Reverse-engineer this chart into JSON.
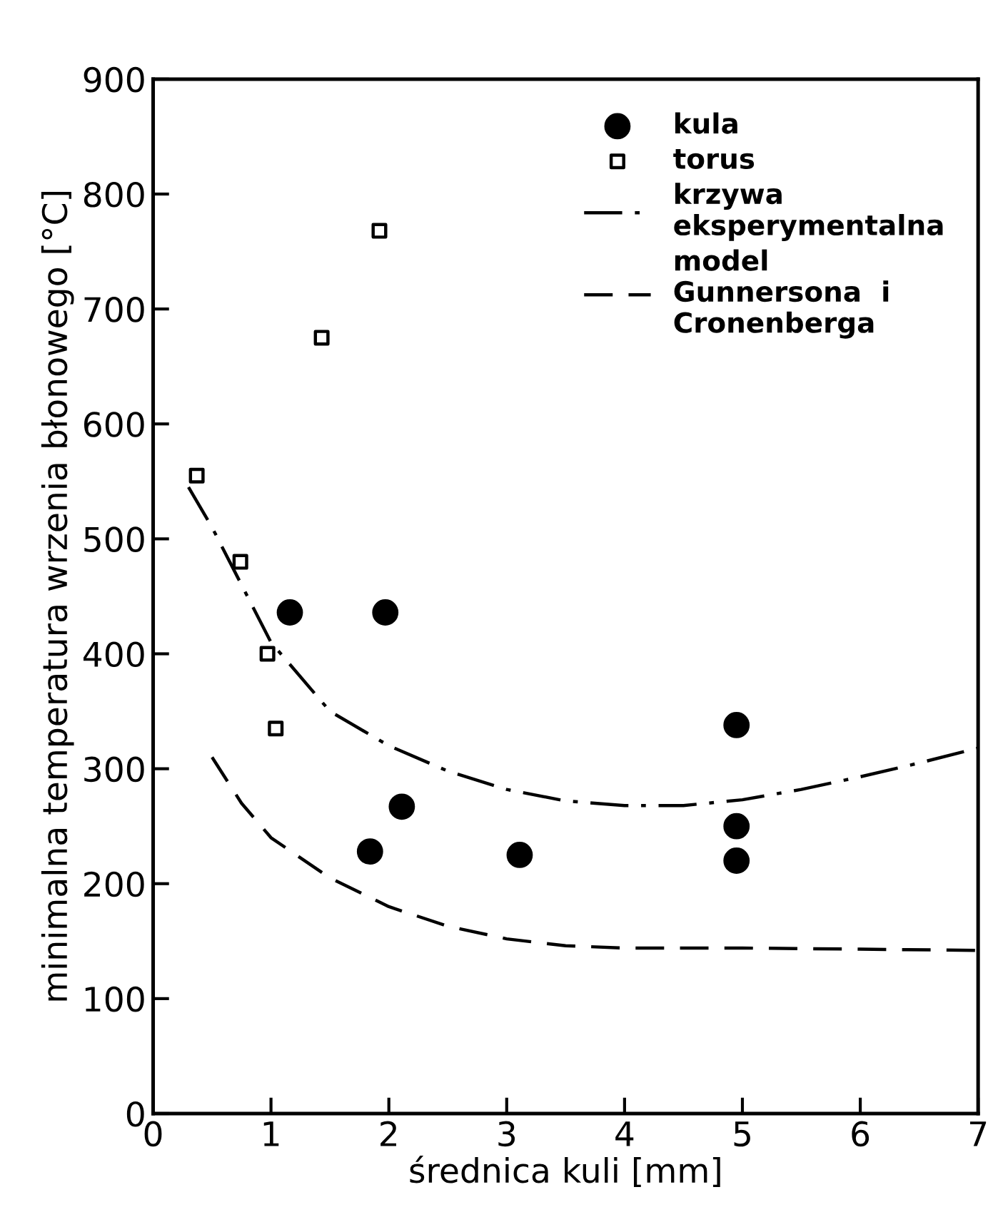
{
  "chart_data": {
    "type": "scatter",
    "xlabel": "średnica kuli [mm]",
    "ylabel": "minimalna temperatura wrzenia błonowego [°C]",
    "xlim": [
      0,
      7
    ],
    "xticks": [
      0,
      1,
      2,
      3,
      4,
      5,
      6,
      7
    ],
    "ylim": [
      0,
      900
    ],
    "yticks": [
      0,
      100,
      200,
      300,
      400,
      500,
      600,
      700,
      800,
      900
    ],
    "grid": false,
    "legend": "top right",
    "series": [
      {
        "name": "kula",
        "marker": "circle",
        "color": "#000000",
        "x": [
          1.16,
          1.97,
          1.84,
          2.11,
          3.11,
          4.95,
          4.95,
          4.95
        ],
        "values": [
          436,
          436,
          228,
          267,
          225,
          338,
          250,
          220
        ]
      },
      {
        "name": "torus",
        "marker": "square",
        "color": "#000000",
        "x": [
          0.37,
          0.74,
          0.97,
          1.04,
          1.43,
          1.92
        ],
        "values": [
          555,
          480,
          400,
          335,
          675,
          768
        ]
      },
      {
        "name": "krzywa\neksperymentalna",
        "type": "line",
        "line_style": "dashdot",
        "color": "#000000",
        "x": [
          0.3,
          0.5,
          0.75,
          1,
          1.5,
          2,
          2.5,
          3,
          3.5,
          4,
          4.5,
          5,
          5.5,
          6,
          6.5,
          7
        ],
        "values": [
          545,
          510,
          460,
          410,
          350,
          320,
          298,
          282,
          272,
          268,
          268,
          273,
          282,
          293,
          305,
          318
        ]
      },
      {
        "name": "model\nGunnersona  i\nCronenberga",
        "type": "line",
        "line_style": "dashed",
        "color": "#000000",
        "x": [
          0.5,
          0.75,
          1,
          1.5,
          2,
          2.5,
          3,
          3.5,
          4,
          5,
          6,
          7
        ],
        "values": [
          310,
          270,
          240,
          205,
          180,
          163,
          152,
          146,
          144,
          144,
          143,
          142
        ]
      }
    ]
  }
}
